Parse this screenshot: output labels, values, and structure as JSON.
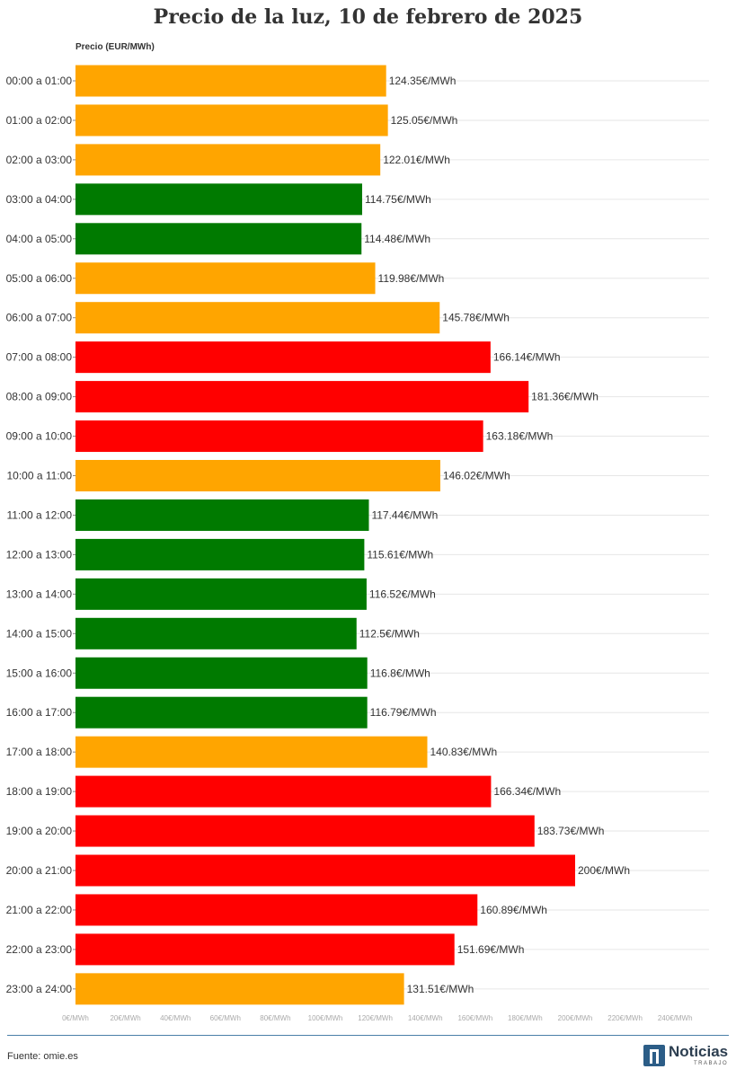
{
  "title": "Precio de la luz, 10 de febrero de 2025",
  "source": "Fuente: omie.es",
  "logo": {
    "name": "Noticias",
    "sub": "TRABAJO"
  },
  "colors": {
    "green": "#007a00",
    "orange": "#ffa500",
    "red": "#ff0000",
    "grid": "#e6e6e6",
    "rule": "#4a7fa8"
  },
  "chart_data": {
    "type": "bar",
    "orientation": "horizontal",
    "ylabel": "Precio (EUR/MWh)",
    "value_suffix": "€/MWh",
    "xlim": [
      0,
      240
    ],
    "xticks": [
      0,
      20,
      40,
      60,
      80,
      100,
      120,
      140,
      160,
      180,
      200,
      220,
      240
    ],
    "xtick_labels": [
      "0€/MWh",
      "20€/MWh",
      "40€/MWh",
      "60€/MWh",
      "80€/MWh",
      "100€/MWh",
      "120€/MWh",
      "140€/MWh",
      "160€/MWh",
      "180€/MWh",
      "200€/MWh",
      "220€/MWh",
      "240€/MWh"
    ],
    "grid": true,
    "categories": [
      "00:00 a 01:00",
      "01:00 a 02:00",
      "02:00 a 03:00",
      "03:00 a 04:00",
      "04:00 a 05:00",
      "05:00 a 06:00",
      "06:00 a 07:00",
      "07:00 a 08:00",
      "08:00 a 09:00",
      "09:00 a 10:00",
      "10:00 a 11:00",
      "11:00 a 12:00",
      "12:00 a 13:00",
      "13:00 a 14:00",
      "14:00 a 15:00",
      "15:00 a 16:00",
      "16:00 a 17:00",
      "17:00 a 18:00",
      "18:00 a 19:00",
      "19:00 a 20:00",
      "20:00 a 21:00",
      "21:00 a 22:00",
      "22:00 a 23:00",
      "23:00 a 24:00"
    ],
    "values": [
      124.35,
      125.05,
      122.01,
      114.75,
      114.48,
      119.98,
      145.78,
      166.14,
      181.36,
      163.18,
      146.02,
      117.44,
      115.61,
      116.52,
      112.5,
      116.8,
      116.79,
      140.83,
      166.34,
      183.73,
      200,
      160.89,
      151.69,
      131.51
    ],
    "value_labels": [
      "124.35€/MWh",
      "125.05€/MWh",
      "122.01€/MWh",
      "114.75€/MWh",
      "114.48€/MWh",
      "119.98€/MWh",
      "145.78€/MWh",
      "166.14€/MWh",
      "181.36€/MWh",
      "163.18€/MWh",
      "146.02€/MWh",
      "117.44€/MWh",
      "115.61€/MWh",
      "116.52€/MWh",
      "112.5€/MWh",
      "116.8€/MWh",
      "116.79€/MWh",
      "140.83€/MWh",
      "166.34€/MWh",
      "183.73€/MWh",
      "200€/MWh",
      "160.89€/MWh",
      "151.69€/MWh",
      "131.51€/MWh"
    ],
    "bar_colors": [
      "orange",
      "orange",
      "orange",
      "green",
      "green",
      "orange",
      "orange",
      "red",
      "red",
      "red",
      "orange",
      "green",
      "green",
      "green",
      "green",
      "green",
      "green",
      "orange",
      "red",
      "red",
      "red",
      "red",
      "red",
      "orange"
    ]
  }
}
